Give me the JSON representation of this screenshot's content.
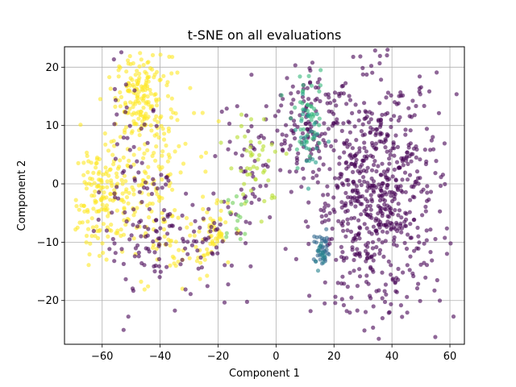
{
  "chart_data": {
    "type": "scatter",
    "title": "t-SNE on all evaluations",
    "xlabel": "Component 1",
    "ylabel": "Component 2",
    "xlim": [
      -73,
      65
    ],
    "ylim": [
      -27.5,
      23.5
    ],
    "xticks": [
      -60,
      -40,
      -20,
      0,
      20,
      40,
      60
    ],
    "yticks": [
      -20,
      -10,
      0,
      10,
      20
    ],
    "grid": true,
    "legend": "none",
    "colormap": "viridis",
    "marker_alpha": 0.6,
    "clusters": [
      {
        "color": "#fde725",
        "cx": -46,
        "cy": 15,
        "sx": 4.5,
        "sy": 3.5,
        "n": 140
      },
      {
        "color": "#fde725",
        "cx": -60,
        "cy": -2,
        "sx": 4.5,
        "sy": 5,
        "n": 140
      },
      {
        "color": "#fde725",
        "cx": -46,
        "cy": 3,
        "sx": 9,
        "sy": 8,
        "n": 170
      },
      {
        "color": "#fde725",
        "cx": -22,
        "cy": -9,
        "sx": 3.5,
        "sy": 3,
        "n": 55
      },
      {
        "color": "#fde725",
        "cx": -35,
        "cy": -10,
        "sx": 5,
        "sy": 3,
        "n": 35
      },
      {
        "color": "#440154",
        "cx": -42,
        "cy": -10,
        "sx": 9,
        "sy": 5,
        "n": 95
      },
      {
        "color": "#440154",
        "cx": -50,
        "cy": 3,
        "sx": 6,
        "sy": 7,
        "n": 45
      },
      {
        "color": "#440154",
        "cx": -22,
        "cy": -10,
        "sx": 4,
        "sy": 4,
        "n": 30
      },
      {
        "color": "#440154",
        "cx": -8,
        "cy": 3,
        "sx": 6,
        "sy": 7,
        "n": 60
      },
      {
        "color": "#b5de2b",
        "cx": -7,
        "cy": 4,
        "sx": 5,
        "sy": 4,
        "n": 45
      },
      {
        "color": "#6ece58",
        "cx": -14,
        "cy": -6,
        "sx": 3,
        "sy": 3,
        "n": 14
      },
      {
        "color": "#440154",
        "cx": 35,
        "cy": -2,
        "sx": 11,
        "sy": 10,
        "n": 700
      },
      {
        "color": "#440154",
        "cx": 12,
        "cy": 12,
        "sx": 5,
        "sy": 5,
        "n": 100
      },
      {
        "color": "#35b779",
        "cx": 11,
        "cy": 11,
        "sx": 3,
        "sy": 3.5,
        "n": 45
      },
      {
        "color": "#1f9e89",
        "cx": 12,
        "cy": 8,
        "sx": 2.5,
        "sy": 3,
        "n": 25
      },
      {
        "color": "#31688e",
        "cx": 16,
        "cy": -11.5,
        "sx": 1.5,
        "sy": 1.5,
        "n": 35
      },
      {
        "color": "#26828e",
        "cx": 15.5,
        "cy": -12,
        "sx": 1.2,
        "sy": 1.2,
        "n": 15
      }
    ]
  }
}
